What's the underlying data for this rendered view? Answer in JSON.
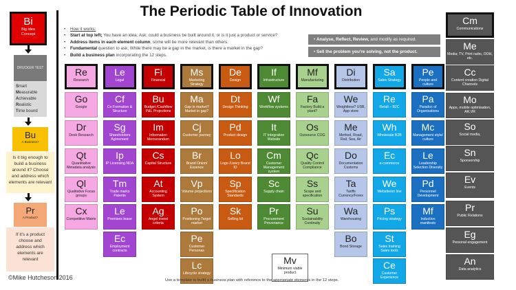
{
  "title": "The Periodic Table of Innovation",
  "how": {
    "heading": "How it works:",
    "items": [
      {
        "bold": "Start at top left;",
        "text": " You have an idea; Ask; could a business be built around it, or is it just a product or service?"
      },
      {
        "bold": "Address items in each element column",
        "text": ", some will be more relevant than others."
      },
      {
        "bold": "Fundamental",
        "text": " question to ask; While there may be a gap in the market, is there a market in the gap?"
      },
      {
        "bold": "Build a business plan",
        "text": " incorporating the 12 steps."
      }
    ]
  },
  "banners": [
    {
      "bold": "Analyse, Reflect, Review,",
      "text": " and modify as required."
    },
    {
      "bold": "Sell the problem you're solving, not the product.",
      "text": ""
    }
  ],
  "left": {
    "bi": {
      "code": "Bi",
      "desc": "Big idea Concept"
    },
    "drucker": {
      "title": "DRUCKER TEST",
      "items": [
        [
          "S",
          "mart"
        ],
        [
          "M",
          "easurable"
        ],
        [
          "A",
          "chievable"
        ],
        [
          "R",
          "ealistic"
        ],
        [
          "T",
          "ime bound"
        ]
      ]
    },
    "bu": {
      "code": "Bu",
      "desc": "A Business?",
      "note": "Is it big enough to build a business around it? Choose and address which elements are relevant"
    },
    "pr": {
      "code": "Pr",
      "desc": "A Product?",
      "note": "If it's a product choose and address  which elements are relevant"
    }
  },
  "colors": {
    "Re": "#f5a8e2",
    "Le": "#a246d2",
    "Fi": "#c40000",
    "Ms": "#ad7a3c",
    "De": "#c95a12",
    "If": "#4d8a33",
    "Mf": "#a9d18e",
    "Di": "#b5c6e8",
    "Sa": "#12a7e6",
    "Pe": "#1a6fc0",
    "Cm": "#555555"
  },
  "columns": [
    {
      "key": "Re",
      "dark": true,
      "tiles": [
        [
          "Re",
          "Research"
        ],
        [
          "Go",
          "Google"
        ],
        [
          "Dr",
          "Desk Research"
        ],
        [
          "Qt",
          "Quantitative Metadata analysis"
        ],
        [
          "Ql",
          "Qualitative Focus groups"
        ],
        [
          "Cx",
          "Competitive Matrix"
        ]
      ]
    },
    {
      "key": "Le",
      "tiles": [
        [
          "Le",
          "Legal"
        ],
        [
          "Cf",
          "Co Formation & Structure"
        ],
        [
          "Sg",
          "Shareholders Agreement"
        ],
        [
          "Ip",
          "IP Licensing NDA"
        ],
        [
          "Tm",
          "Trade marks Patents"
        ],
        [
          "Le",
          "Premises lease"
        ],
        [
          "Ec",
          "Employment contracts"
        ]
      ]
    },
    {
      "key": "Fi",
      "tiles": [
        [
          "Fi",
          "Financial"
        ],
        [
          "Bu",
          "Budget /Cashflow P&L Projections"
        ],
        [
          "Im",
          "Information Memorandum"
        ],
        [
          "Cs",
          "Capital Structure"
        ],
        [
          "At",
          "Accounting System"
        ],
        [
          "Ag",
          "Angel invest criteria"
        ]
      ]
    },
    {
      "key": "Ms",
      "tiles": [
        [
          "Ms",
          "Marketing Strategy"
        ],
        [
          "Ma",
          "Gap in market? Market in gap?"
        ],
        [
          "Cj",
          "Customer journey"
        ],
        [
          "Br",
          "Brand Onion/ Essence"
        ],
        [
          "Vp",
          "Volume projections"
        ],
        [
          "Po",
          "Positioning Target market"
        ],
        [
          "Pe",
          "Customer Personas"
        ],
        [
          "Lc",
          "Lifecycle strategy"
        ]
      ]
    },
    {
      "key": "De",
      "tiles": [
        [
          "De",
          "Design"
        ],
        [
          "Dt",
          "Design Thinking"
        ],
        [
          "Pd",
          "Product design"
        ],
        [
          "Lo",
          "Logo /Livery Brand ID"
        ],
        [
          "Sp",
          "Specification Standards"
        ],
        [
          "Sk",
          "Selling kit"
        ]
      ]
    },
    {
      "key": "If",
      "tiles": [
        [
          "If",
          "Infrastructure"
        ],
        [
          "Wf",
          "Workflow systems"
        ],
        [
          "It",
          "IT Integration Website"
        ],
        [
          "Cm",
          "Customer Management system"
        ],
        [
          "Sc",
          "Supply chain"
        ],
        [
          "Pr",
          "Procurement Provenance"
        ]
      ]
    },
    {
      "key": "Mf",
      "dark": true,
      "tiles": [
        [
          "Mf",
          "Manufacturing"
        ],
        [
          "Fa",
          "Factory Build a plant?"
        ],
        [
          "Os",
          "Outsource COG"
        ],
        [
          "Qc",
          "Quality Control Compliance"
        ],
        [
          "Ss",
          "Scope and specification"
        ],
        [
          "Su",
          "Sustainability Continuity"
        ]
      ]
    },
    {
      "key": "Di",
      "dark": true,
      "tiles": [
        [
          "Di",
          "Distribution"
        ],
        [
          "We",
          "Weightless? USB, App store"
        ],
        [
          "Me",
          "Method, Road, Rail, Sea, Air"
        ],
        [
          "Do",
          "Documentation Customs"
        ],
        [
          "Ta",
          "Tariffs Currency/Forex"
        ],
        [
          "Wa",
          "Warehousing"
        ],
        [
          "Bo",
          "Bond Storage"
        ]
      ]
    },
    {
      "key": "Sa",
      "tiles": [
        [
          "Sa",
          "Sales Strategy"
        ],
        [
          "Re",
          "Retail – B2C"
        ],
        [
          "Wh",
          "Wholesale B2B"
        ],
        [
          "Ec",
          "e-commerce"
        ],
        [
          "We",
          "Website/on line"
        ],
        [
          "Ps",
          "Pricing strategy"
        ],
        [
          "St",
          "Sales training Sales tools"
        ],
        [
          "Ce",
          "Customer Experience"
        ]
      ]
    },
    {
      "key": "Pe",
      "tiles": [
        [
          "Pe",
          "People and culture"
        ],
        [
          "Pa",
          "Paradox of Organisations"
        ],
        [
          "Mc",
          "Management style/ culture"
        ],
        [
          "Le",
          "Leadership Selection Diversity"
        ],
        [
          "Pd",
          "Personnel Development"
        ],
        [
          "Mf",
          "Induction manifesto"
        ]
      ]
    }
  ],
  "right": {
    "key": "Cm",
    "tiles": [
      [
        "Cm",
        "Communications"
      ],
      [
        "Me",
        "Media; TV, Print radio, OOH, etc."
      ],
      [
        "Cc",
        "Content creation Digital Channels"
      ],
      [
        "Mo",
        "Apps, mobile optimisation, AR,VR"
      ],
      [
        "So",
        "Social media,"
      ],
      [
        "Sn",
        "Sponsorship"
      ],
      [
        "Ev",
        "Events"
      ],
      [
        "Pr",
        "Public Relations"
      ],
      [
        "Eg",
        "Personal engagement"
      ],
      [
        "An",
        "Data analytics"
      ]
    ]
  },
  "mv": {
    "code": "Mv",
    "desc": "Minimum viable product"
  },
  "footer": "Use a template to build a business plan with reference to the appropriate elements in the 12 steps.",
  "copyright": "©Mike Hutcheson 2016"
}
